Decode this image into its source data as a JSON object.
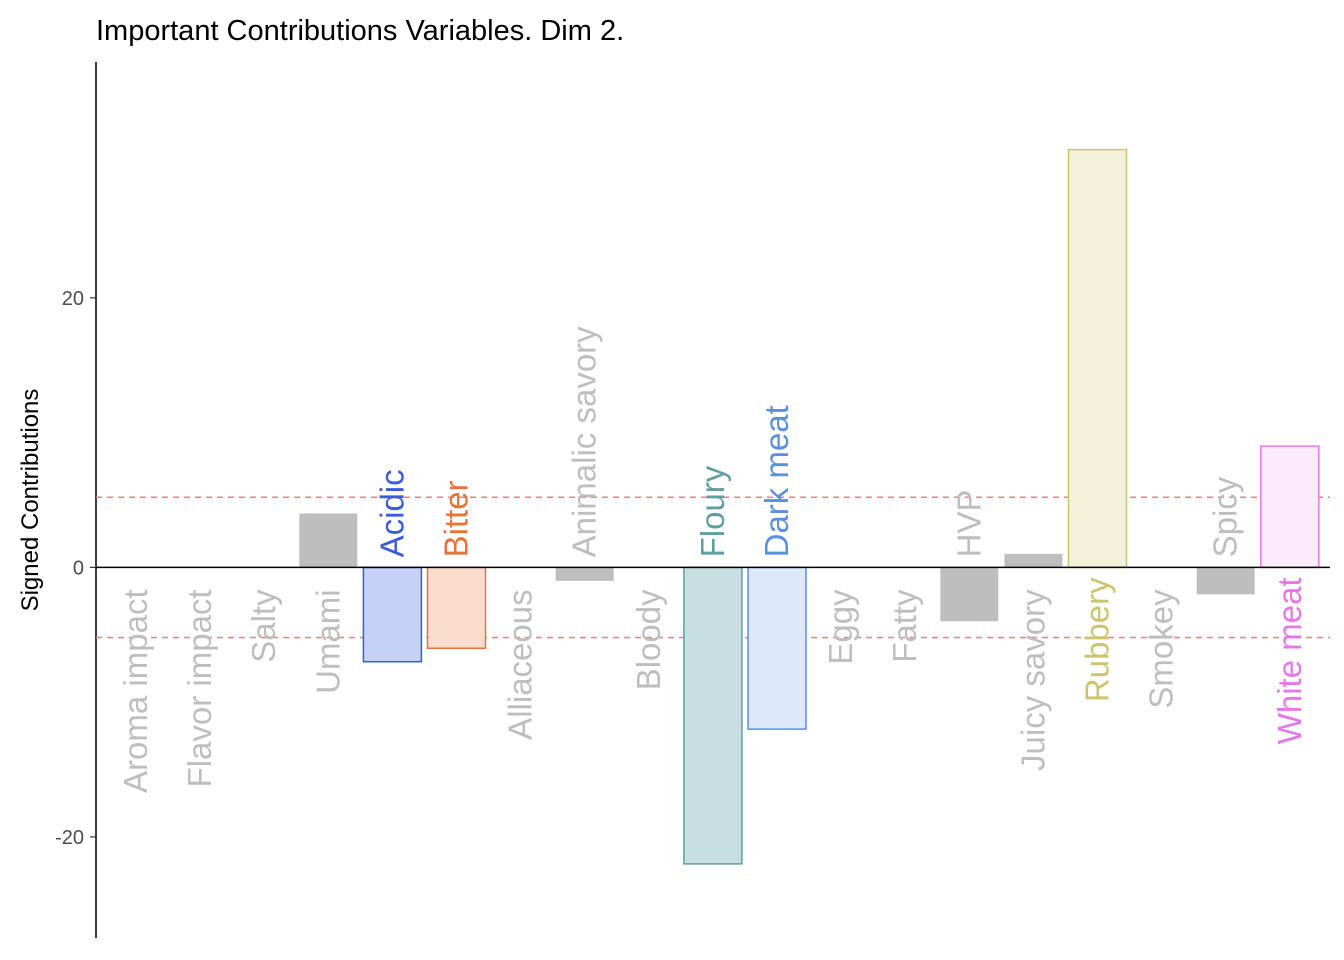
{
  "chart_data": {
    "type": "bar",
    "title": "Important Contributions Variables. Dim 2.",
    "xlabel": "",
    "ylabel": "Signed Contributions",
    "ylim": [
      -27.5,
      37.5
    ],
    "yticks": [
      -20,
      0,
      20
    ],
    "threshold": 5.2,
    "grid": false,
    "legend": "none",
    "colors": {
      "default_fill": "#bebebe",
      "default_label": "#bebebe",
      "threshold_line": "#f08080"
    },
    "bars": [
      {
        "label": "Aroma impact",
        "value": 0,
        "important": false
      },
      {
        "label": "Flavor impact",
        "value": 0,
        "important": false
      },
      {
        "label": "Salty",
        "value": 0,
        "important": false
      },
      {
        "label": "Umami",
        "value": 4.0,
        "important": false
      },
      {
        "label": "Acidic",
        "value": -7.0,
        "important": true,
        "stroke": "#3b5bdb",
        "fill": "#c5d1f6",
        "text": "#3b5bdb"
      },
      {
        "label": "Bitter",
        "value": -6.0,
        "important": true,
        "stroke": "#e8733a",
        "fill": "#fadccd",
        "text": "#e8733a"
      },
      {
        "label": "Alliaceous",
        "value": 0,
        "important": false
      },
      {
        "label": "Animalic savory",
        "value": -1.0,
        "important": false
      },
      {
        "label": "Bloody",
        "value": 0,
        "important": false
      },
      {
        "label": "Floury",
        "value": -22.0,
        "important": true,
        "stroke": "#5f9ea0",
        "fill": "#c7dfe0",
        "text": "#5f9ea0"
      },
      {
        "label": "Dark meat",
        "value": -12.0,
        "important": true,
        "stroke": "#5b8fe0",
        "fill": "#dde8fa",
        "text": "#5b8fe0"
      },
      {
        "label": "Eggy",
        "value": 0,
        "important": false
      },
      {
        "label": "Fatty",
        "value": 0,
        "important": false
      },
      {
        "label": "HVP",
        "value": -4.0,
        "important": false
      },
      {
        "label": "Juicy savory",
        "value": 1.0,
        "important": false
      },
      {
        "label": "Rubbery",
        "value": 31.0,
        "important": true,
        "stroke": "#cdc46e",
        "fill": "#f3f1da",
        "text": "#cdc46e"
      },
      {
        "label": "Smokey",
        "value": 0,
        "important": false
      },
      {
        "label": "Spicy",
        "value": -2.0,
        "important": false
      },
      {
        "label": "White meat",
        "value": 9.0,
        "important": true,
        "stroke": "#e677e6",
        "fill": "#fbebfb",
        "text": "#e677e6"
      }
    ]
  }
}
